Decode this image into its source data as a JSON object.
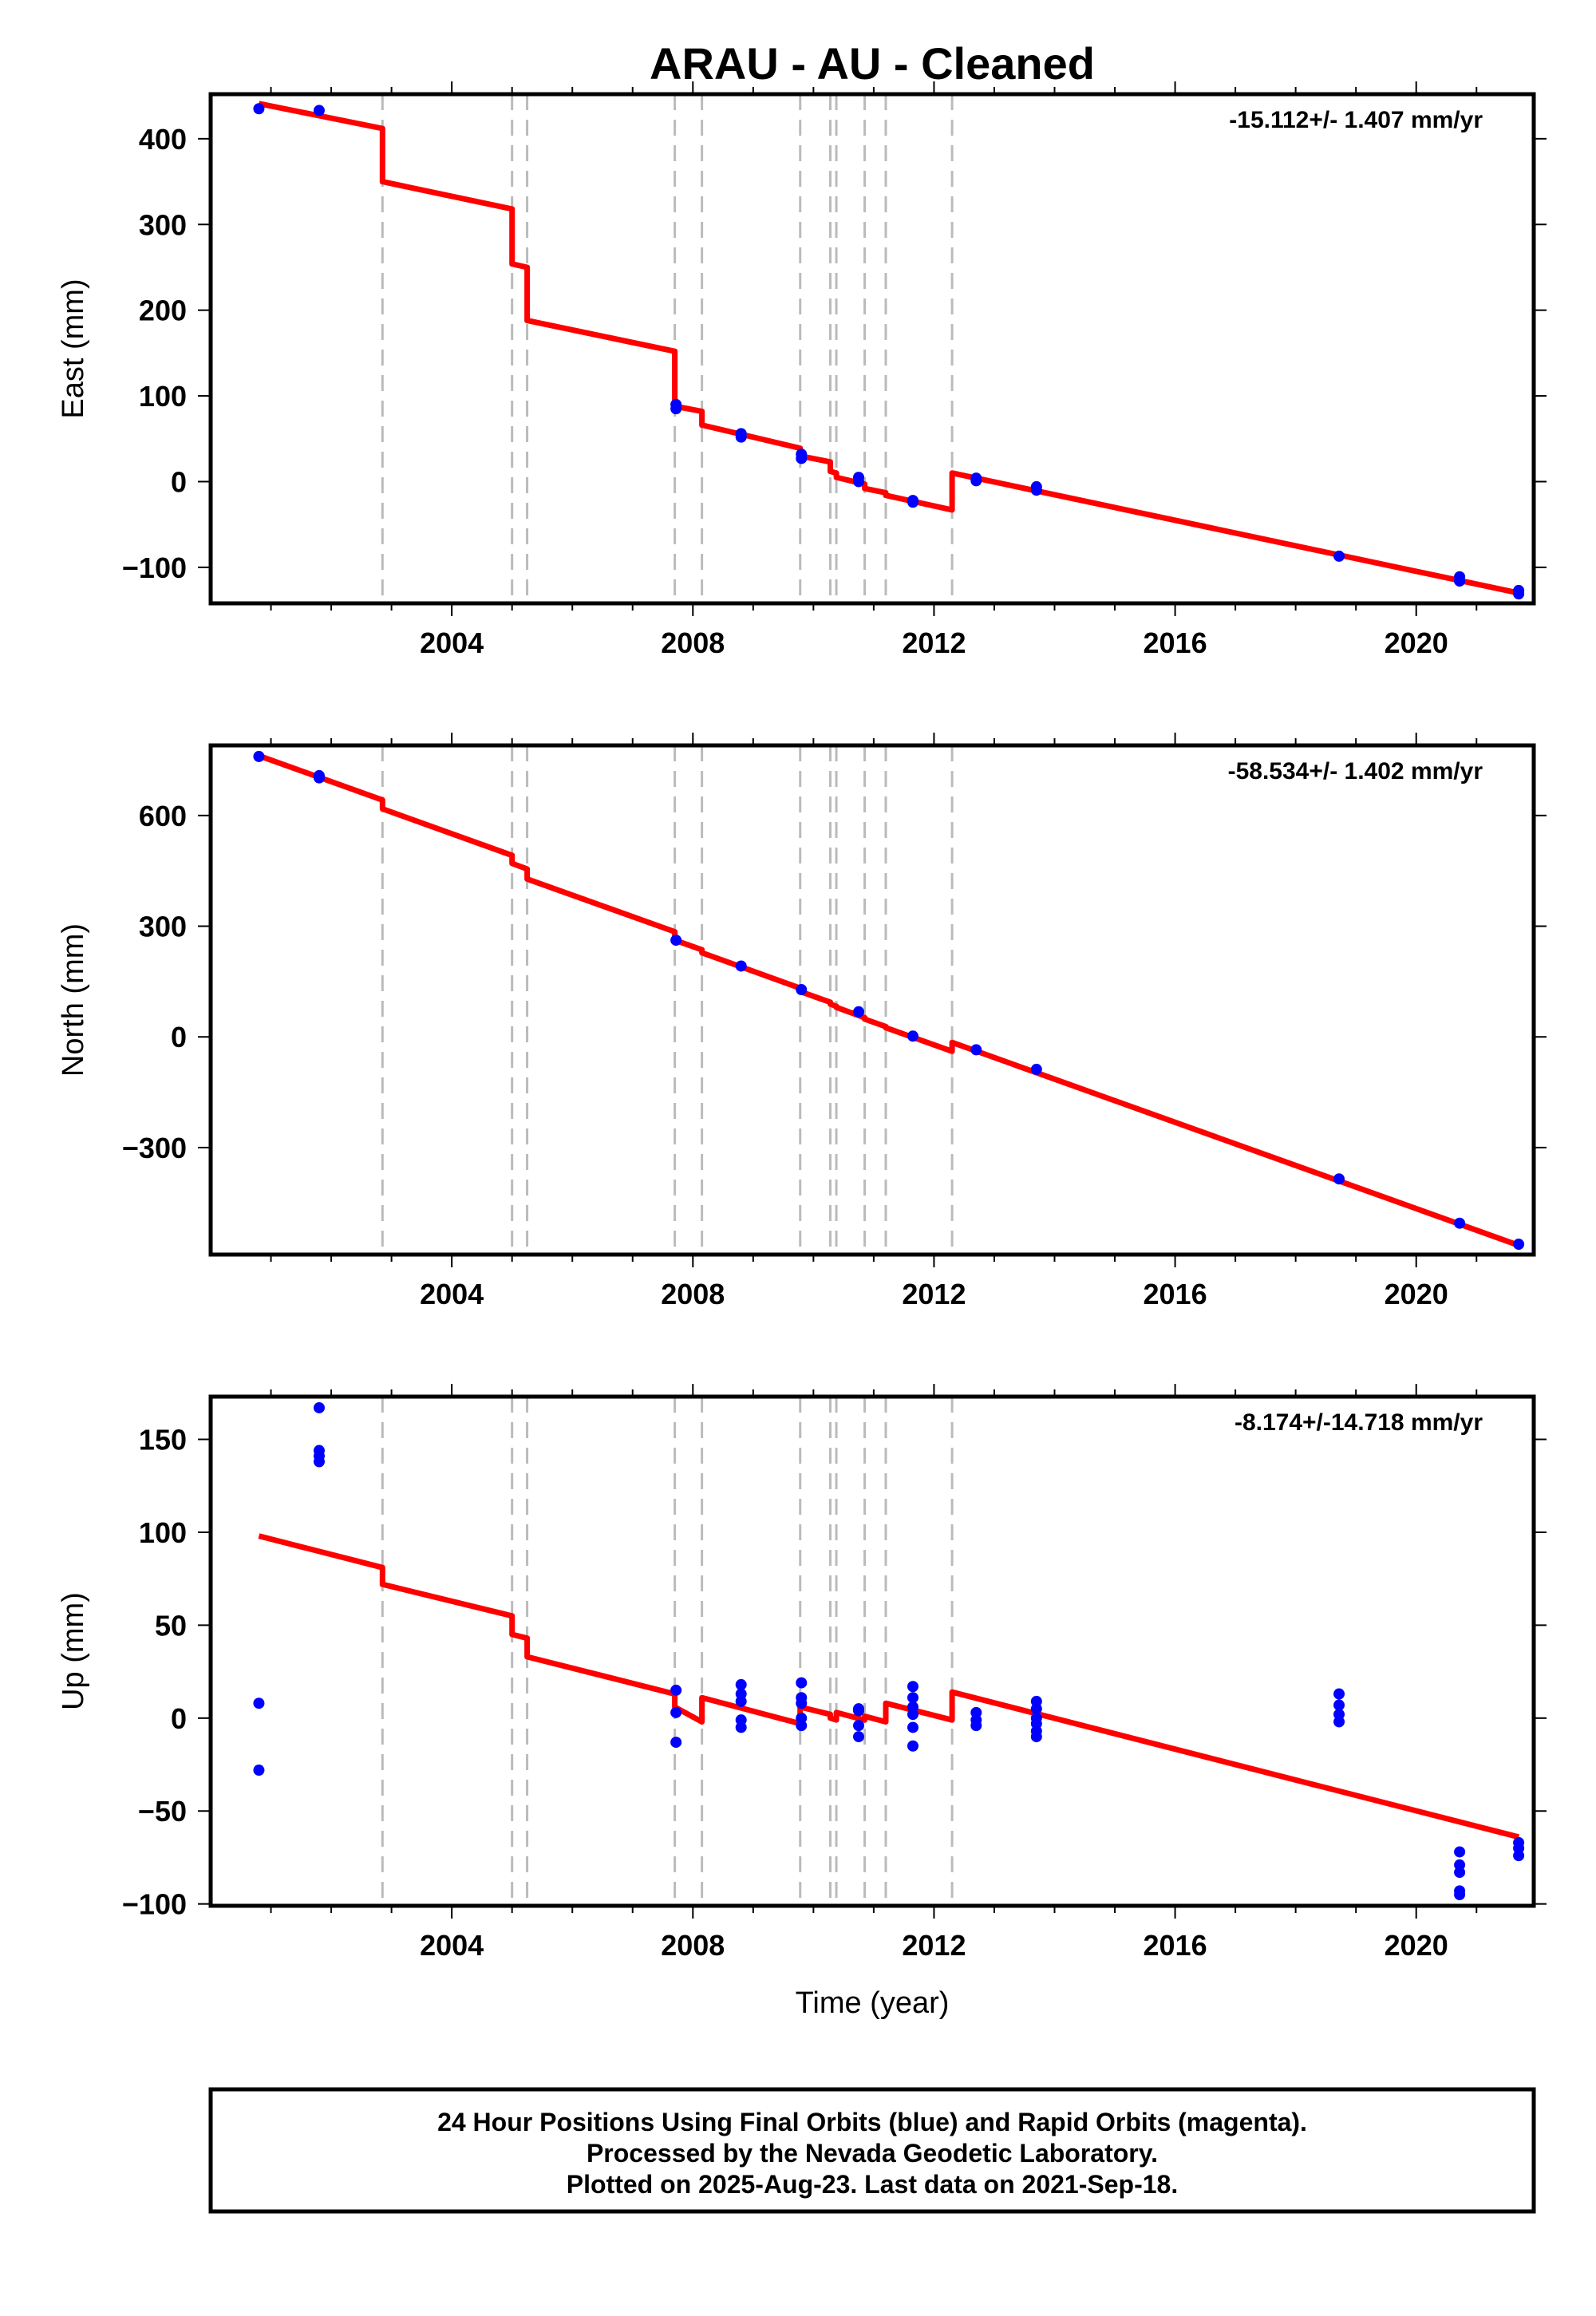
{
  "title": "ARAU  - AU - Cleaned",
  "footer_lines": [
    "24 Hour Positions Using Final Orbits (blue) and Rapid Orbits (magenta).",
    "Processed by the Nevada Geodetic Laboratory.",
    "Plotted on 2025-Aug-23. Last data on 2021-Sep-18."
  ],
  "colors": {
    "data": "#0000ff",
    "model": "#ff0000",
    "steps": "#bbbbbb",
    "frame": "#000000"
  },
  "chart_data": [
    {
      "type": "scatter",
      "component": "east",
      "ylabel": "East (mm)",
      "xlabel": "",
      "rate_label": "-15.112+/- 1.407 mm/yr",
      "xlim": [
        2000.0,
        2021.95
      ],
      "ylim": [
        -142,
        452
      ],
      "xticks": [
        2004,
        2008,
        2012,
        2016,
        2020
      ],
      "yticks": [
        -100,
        0,
        100,
        200,
        300,
        400
      ],
      "step_epochs": [
        2002.85,
        2005.0,
        2005.25,
        2007.7,
        2008.15,
        2009.78,
        2010.28,
        2010.38,
        2010.85,
        2011.2,
        2012.3
      ],
      "points": [
        [
          2000.8,
          435
        ],
        [
          2001.8,
          433
        ],
        [
          2007.72,
          90
        ],
        [
          2007.72,
          85
        ],
        [
          2008.8,
          56
        ],
        [
          2008.8,
          52
        ],
        [
          2009.8,
          32
        ],
        [
          2009.8,
          27
        ],
        [
          2010.75,
          5
        ],
        [
          2010.75,
          0
        ],
        [
          2011.65,
          -22
        ],
        [
          2011.65,
          -24
        ],
        [
          2012.7,
          4
        ],
        [
          2012.7,
          1
        ],
        [
          2013.7,
          -6
        ],
        [
          2013.7,
          -10
        ],
        [
          2018.72,
          -87
        ],
        [
          2020.72,
          -111
        ],
        [
          2020.72,
          -116
        ],
        [
          2021.7,
          -127
        ],
        [
          2021.7,
          -131
        ]
      ],
      "model": [
        [
          2000.8,
          441
        ],
        [
          2002.85,
          412
        ],
        [
          2002.85,
          350
        ],
        [
          2005.0,
          318
        ],
        [
          2005.0,
          254
        ],
        [
          2005.25,
          250
        ],
        [
          2005.25,
          188
        ],
        [
          2007.7,
          152
        ],
        [
          2007.7,
          88
        ],
        [
          2008.15,
          82
        ],
        [
          2008.15,
          66
        ],
        [
          2009.78,
          39
        ],
        [
          2009.78,
          30
        ],
        [
          2010.28,
          23
        ],
        [
          2010.28,
          12
        ],
        [
          2010.38,
          10
        ],
        [
          2010.38,
          5
        ],
        [
          2010.85,
          -3
        ],
        [
          2010.85,
          -8
        ],
        [
          2011.2,
          -13
        ],
        [
          2011.2,
          -16
        ],
        [
          2012.3,
          -33
        ],
        [
          2012.3,
          10
        ],
        [
          2021.7,
          -130
        ]
      ]
    },
    {
      "type": "scatter",
      "component": "north",
      "ylabel": "North (mm)",
      "xlabel": "",
      "rate_label": "-58.534+/- 1.402 mm/yr",
      "xlim": [
        2000.0,
        2021.95
      ],
      "ylim": [
        -590,
        790
      ],
      "xticks": [
        2004,
        2008,
        2012,
        2016,
        2020
      ],
      "yticks": [
        -300,
        0,
        300,
        600
      ],
      "step_epochs": [
        2002.85,
        2005.0,
        2005.25,
        2007.7,
        2008.15,
        2009.78,
        2010.28,
        2010.38,
        2010.85,
        2011.2,
        2012.3
      ],
      "points": [
        [
          2000.8,
          760
        ],
        [
          2001.8,
          708
        ],
        [
          2001.8,
          702
        ],
        [
          2007.72,
          262
        ],
        [
          2008.8,
          192
        ],
        [
          2009.8,
          128
        ],
        [
          2010.75,
          68
        ],
        [
          2011.65,
          2
        ],
        [
          2012.7,
          -35
        ],
        [
          2013.7,
          -88
        ],
        [
          2018.72,
          -385
        ],
        [
          2020.72,
          -505
        ],
        [
          2021.7,
          -562
        ]
      ],
      "model": [
        [
          2000.8,
          762
        ],
        [
          2002.85,
          642
        ],
        [
          2002.85,
          618
        ],
        [
          2005.0,
          492
        ],
        [
          2005.0,
          470
        ],
        [
          2005.25,
          455
        ],
        [
          2005.25,
          428
        ],
        [
          2007.7,
          285
        ],
        [
          2007.7,
          262
        ],
        [
          2008.15,
          236
        ],
        [
          2008.15,
          228
        ],
        [
          2009.78,
          132
        ],
        [
          2009.78,
          123
        ],
        [
          2010.28,
          94
        ],
        [
          2010.28,
          89
        ],
        [
          2010.38,
          83
        ],
        [
          2010.38,
          80
        ],
        [
          2010.85,
          52
        ],
        [
          2010.85,
          48
        ],
        [
          2011.2,
          28
        ],
        [
          2011.2,
          25
        ],
        [
          2012.3,
          -39
        ],
        [
          2012.3,
          -15
        ],
        [
          2021.7,
          -565
        ]
      ]
    },
    {
      "type": "scatter",
      "component": "up",
      "ylabel": "Up (mm)",
      "xlabel": "Time (year)",
      "rate_label": "-8.174+/-14.718 mm/yr",
      "xlim": [
        2000.0,
        2021.95
      ],
      "ylim": [
        -101,
        173
      ],
      "xticks": [
        2004,
        2008,
        2012,
        2016,
        2020
      ],
      "yticks": [
        -100,
        -50,
        0,
        50,
        100,
        150
      ],
      "step_epochs": [
        2002.85,
        2005.0,
        2005.25,
        2007.7,
        2008.15,
        2009.78,
        2010.28,
        2010.38,
        2010.85,
        2011.2,
        2012.3
      ],
      "points": [
        [
          2000.8,
          8
        ],
        [
          2000.8,
          -28
        ],
        [
          2001.8,
          167
        ],
        [
          2001.8,
          144
        ],
        [
          2001.8,
          141
        ],
        [
          2001.8,
          138
        ],
        [
          2007.72,
          15
        ],
        [
          2007.72,
          3
        ],
        [
          2007.72,
          -13
        ],
        [
          2008.8,
          18
        ],
        [
          2008.8,
          13
        ],
        [
          2008.8,
          9
        ],
        [
          2008.8,
          -1
        ],
        [
          2008.8,
          -5
        ],
        [
          2009.8,
          19
        ],
        [
          2009.8,
          11
        ],
        [
          2009.8,
          8
        ],
        [
          2009.8,
          0
        ],
        [
          2009.8,
          -4
        ],
        [
          2010.75,
          5
        ],
        [
          2010.75,
          4
        ],
        [
          2010.75,
          -4
        ],
        [
          2010.75,
          -10
        ],
        [
          2011.65,
          17
        ],
        [
          2011.65,
          11
        ],
        [
          2011.65,
          6
        ],
        [
          2011.65,
          2
        ],
        [
          2011.65,
          -5
        ],
        [
          2011.65,
          -15
        ],
        [
          2012.7,
          3
        ],
        [
          2012.7,
          -1
        ],
        [
          2012.7,
          -4
        ],
        [
          2013.7,
          9
        ],
        [
          2013.7,
          5
        ],
        [
          2013.7,
          0
        ],
        [
          2013.7,
          -3
        ],
        [
          2013.7,
          -7
        ],
        [
          2013.7,
          -10
        ],
        [
          2018.72,
          13
        ],
        [
          2018.72,
          7
        ],
        [
          2018.72,
          2
        ],
        [
          2018.72,
          -2
        ],
        [
          2020.72,
          -72
        ],
        [
          2020.72,
          -79
        ],
        [
          2020.72,
          -83
        ],
        [
          2020.72,
          -93
        ],
        [
          2020.72,
          -95
        ],
        [
          2021.7,
          -67
        ],
        [
          2021.7,
          -70
        ],
        [
          2021.7,
          -74
        ]
      ],
      "model": [
        [
          2000.8,
          98
        ],
        [
          2002.85,
          81
        ],
        [
          2002.85,
          72
        ],
        [
          2005.0,
          55
        ],
        [
          2005.0,
          45
        ],
        [
          2005.25,
          43
        ],
        [
          2005.25,
          33
        ],
        [
          2007.7,
          13
        ],
        [
          2007.7,
          6
        ],
        [
          2008.15,
          -2
        ],
        [
          2008.15,
          11
        ],
        [
          2009.78,
          -3
        ],
        [
          2009.78,
          6
        ],
        [
          2010.28,
          2
        ],
        [
          2010.28,
          0
        ],
        [
          2010.38,
          -1
        ],
        [
          2010.38,
          3
        ],
        [
          2010.85,
          -1
        ],
        [
          2010.85,
          1
        ],
        [
          2011.2,
          -2
        ],
        [
          2011.2,
          8
        ],
        [
          2012.3,
          -1
        ],
        [
          2012.3,
          14
        ],
        [
          2021.7,
          -64
        ]
      ]
    }
  ]
}
